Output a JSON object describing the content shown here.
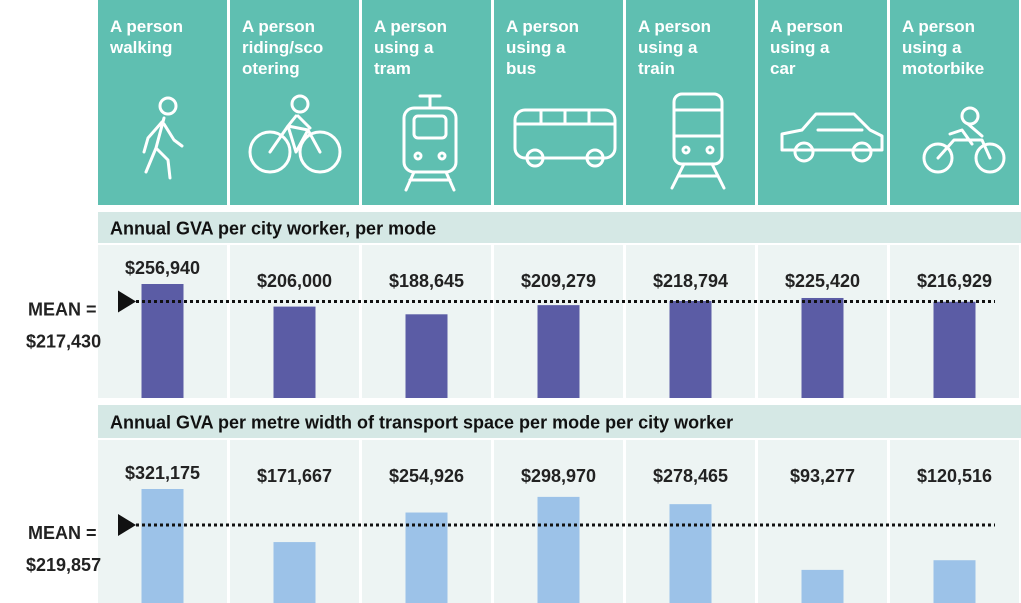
{
  "header": {
    "modes": [
      "A person\nwalking",
      "A person\nriding/sco\notering",
      "A person\nusing a\ntram",
      "A person\nusing a\nbus",
      "A person\nusing a\ntrain",
      "A person\nusing a\ncar",
      "A person\nusing a\nmotorbike"
    ]
  },
  "chart_data": [
    {
      "type": "bar",
      "title": "Annual GVA per city worker, per mode",
      "values": [
        256940,
        206000,
        188645,
        209279,
        218794,
        225420,
        216929
      ],
      "value_labels": [
        "$256,940",
        "$206,000",
        "$188,645",
        "$209,279",
        "$218,794",
        "$225,420",
        "$216,929"
      ],
      "color": "#5b5ca5",
      "mean": 217430,
      "mean_text": "MEAN =",
      "mean_label": "$217,430"
    },
    {
      "type": "bar",
      "title": "Annual GVA per metre width of transport space per mode per city worker",
      "values": [
        321175,
        171667,
        254926,
        298970,
        278465,
        93277,
        120516
      ],
      "value_labels": [
        "$321,175",
        "$171,667",
        "$254,926",
        "$298,970",
        "$278,465",
        "$93,277",
        "$120,516"
      ],
      "color": "#9cc2e8",
      "mean": 219857,
      "mean_text": "MEAN =",
      "mean_label": "$219,857"
    }
  ]
}
